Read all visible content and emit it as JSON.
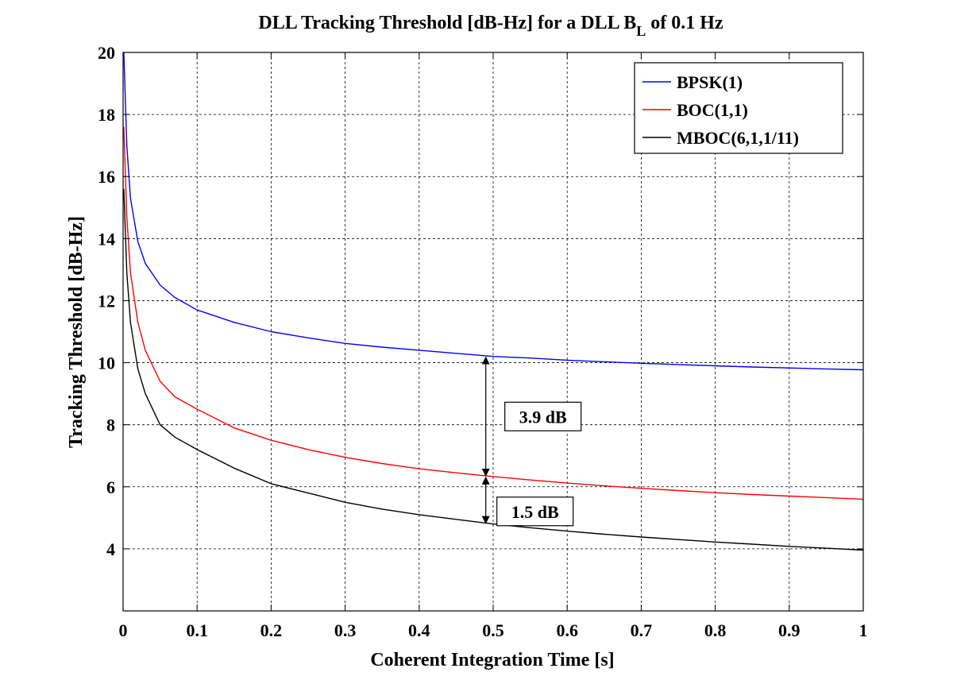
{
  "chart_data": {
    "type": "line",
    "title": "DLL Tracking Threshold [dB-Hz] for a DLL B",
    "title_subscript": "L",
    "title_suffix": " of 0.1 Hz",
    "xlabel": "Coherent Integration Time [s]",
    "ylabel": "Tracking Threshold [dB-Hz]",
    "xlim": [
      0,
      1
    ],
    "ylim": [
      2,
      20
    ],
    "xticks": [
      0,
      0.1,
      0.2,
      0.3,
      0.4,
      0.5,
      0.6,
      0.7,
      0.8,
      0.9,
      1
    ],
    "xtick_labels": [
      "0",
      "0.1",
      "0.2",
      "0.3",
      "0.4",
      "0.5",
      "0.6",
      "0.7",
      "0.8",
      "0.9",
      "1"
    ],
    "yticks": [
      4,
      6,
      8,
      10,
      12,
      14,
      16,
      18,
      20
    ],
    "ytick_labels": [
      "4",
      "6",
      "8",
      "10",
      "12",
      "14",
      "16",
      "18",
      "20"
    ],
    "grid": true,
    "legend_position": "top-right",
    "x": [
      0.001,
      0.005,
      0.01,
      0.02,
      0.03,
      0.05,
      0.07,
      0.1,
      0.15,
      0.2,
      0.25,
      0.3,
      0.35,
      0.4,
      0.45,
      0.5,
      0.55,
      0.6,
      0.65,
      0.7,
      0.75,
      0.8,
      0.85,
      0.9,
      0.95,
      1.0
    ],
    "series": [
      {
        "name": "BPSK(1)",
        "color": "#0000ff",
        "values": [
          20.0,
          17.0,
          15.3,
          13.9,
          13.2,
          12.5,
          12.1,
          11.7,
          11.3,
          11.0,
          10.8,
          10.62,
          10.5,
          10.4,
          10.3,
          10.2,
          10.15,
          10.08,
          10.03,
          9.98,
          9.94,
          9.9,
          9.86,
          9.83,
          9.8,
          9.77
        ]
      },
      {
        "name": "BOC(1,1)",
        "color": "#ff0000",
        "values": [
          17.6,
          14.7,
          12.9,
          11.3,
          10.4,
          9.4,
          8.9,
          8.5,
          7.9,
          7.5,
          7.2,
          6.95,
          6.75,
          6.58,
          6.45,
          6.33,
          6.22,
          6.12,
          6.03,
          5.95,
          5.88,
          5.81,
          5.75,
          5.7,
          5.65,
          5.6
        ]
      },
      {
        "name": "MBOC(6,1,1/11)",
        "color": "#000000",
        "values": [
          15.6,
          12.9,
          11.3,
          9.8,
          9.0,
          8.0,
          7.6,
          7.2,
          6.6,
          6.1,
          5.8,
          5.5,
          5.28,
          5.1,
          4.95,
          4.8,
          4.68,
          4.57,
          4.47,
          4.38,
          4.3,
          4.22,
          4.15,
          4.08,
          4.02,
          3.96
        ]
      }
    ],
    "annotations": [
      {
        "text": "3.9 dB",
        "x": 0.49,
        "y_from": 6.33,
        "y_to": 10.2
      },
      {
        "text": "1.5 dB",
        "x": 0.49,
        "y_from": 4.8,
        "y_to": 6.33
      }
    ]
  }
}
